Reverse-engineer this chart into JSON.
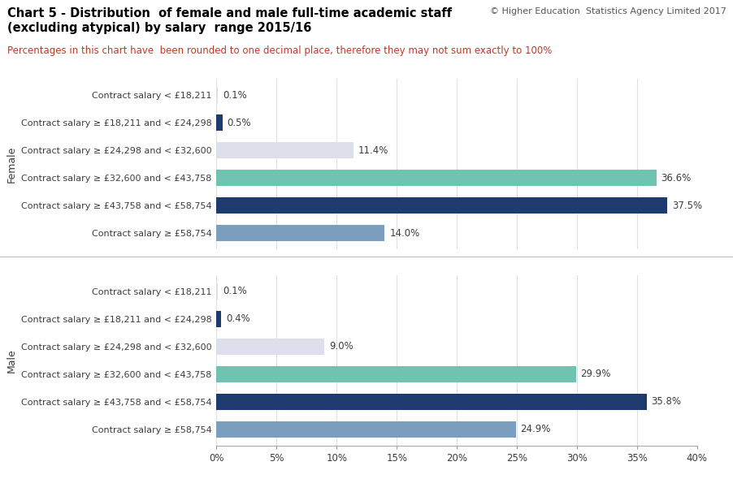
{
  "title_line1": "Chart 5 - Distribution  of female and male full-time academic staff",
  "title_line2": "(excluding atypical) by salary  range 2015/16",
  "copyright": "© Higher Education  Statistics Agency Limited 2017",
  "subtitle": "Percentages in this chart have  been rounded to one decimal place, therefore they may not sum exactly to 100%",
  "female_labels": [
    "Contract salary < £18,211",
    "Contract salary ≥ £18,211 and < £24,298",
    "Contract salary ≥ £24,298 and < £32,600",
    "Contract salary ≥ £32,600 and < £43,758",
    "Contract salary ≥ £43,758 and < £58,754",
    "Contract salary ≥ £58,754"
  ],
  "male_labels": [
    "Contract salary < £18,211",
    "Contract salary ≥ £18,211 and < £24,298",
    "Contract salary ≥ £24,298 and < £32,600",
    "Contract salary ≥ £32,600 and < £43,758",
    "Contract salary ≥ £43,758 and < £58,754",
    "Contract salary ≥ £58,754"
  ],
  "female_values": [
    0.1,
    0.5,
    11.4,
    36.6,
    37.5,
    14.0
  ],
  "male_values": [
    0.1,
    0.4,
    9.0,
    29.9,
    35.8,
    24.9
  ],
  "bar_colors": [
    "#dde0ea",
    "#1e3a6e",
    "#dde0ea",
    "#6ec4b0",
    "#1e3a6e",
    "#7b9dbe"
  ],
  "xlim": [
    0,
    40
  ],
  "xticks": [
    0,
    5,
    10,
    15,
    20,
    25,
    30,
    35,
    40
  ],
  "xtick_labels": [
    "0%",
    "5%",
    "10%",
    "15%",
    "20%",
    "25%",
    "30%",
    "35%",
    "40%"
  ],
  "female_ylabel": "Female",
  "male_ylabel": "Male",
  "background_color": "#ffffff",
  "grid_color": "#e0e0e0",
  "text_color": "#3c3c3c",
  "title_fontsize": 10.5,
  "copyright_fontsize": 8,
  "subtitle_fontsize": 8.5,
  "label_fontsize": 8,
  "value_fontsize": 8.5,
  "ylabel_fontsize": 9,
  "xtick_fontsize": 8.5,
  "subtitle_color": "#c0392b",
  "separator_color": "#bbbbbb"
}
